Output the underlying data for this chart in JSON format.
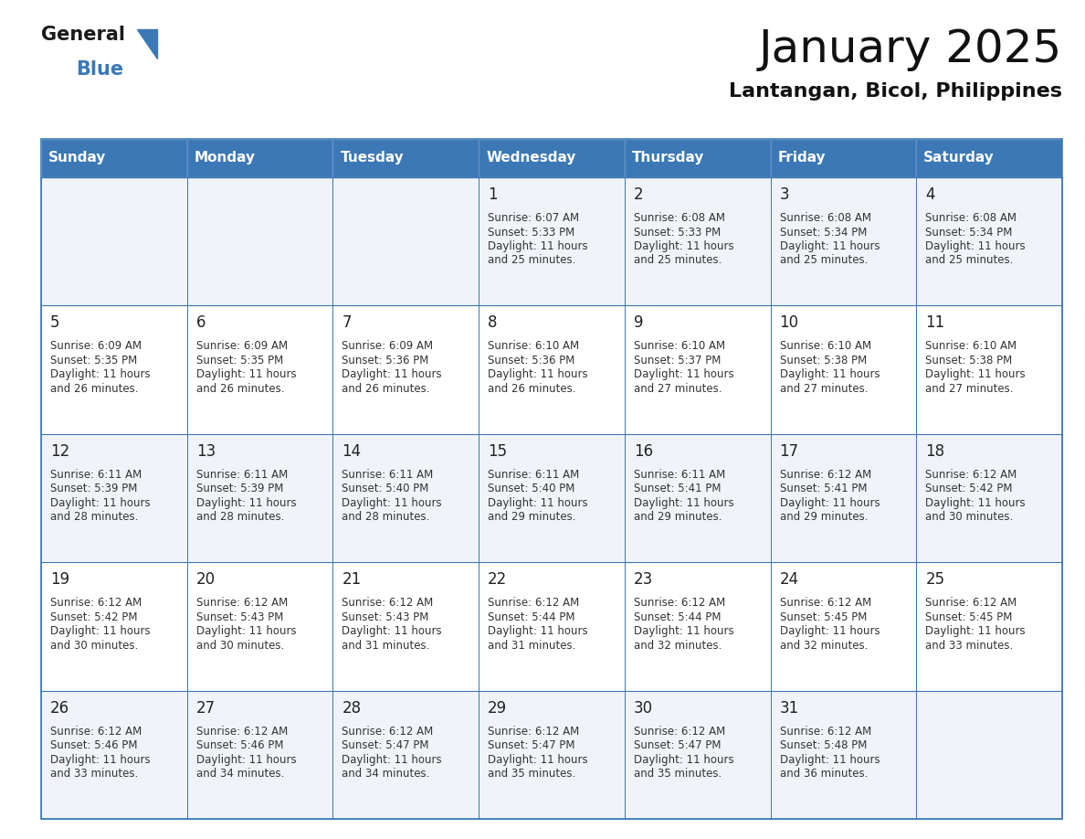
{
  "title": "January 2025",
  "subtitle": "Lantangan, Bicol, Philippines",
  "days_of_week": [
    "Sunday",
    "Monday",
    "Tuesday",
    "Wednesday",
    "Thursday",
    "Friday",
    "Saturday"
  ],
  "header_bg": "#3b78b5",
  "header_text": "#ffffff",
  "cell_bg_odd": "#f0f4f8",
  "cell_bg_even": "#ffffff",
  "cell_border": "#3b78b5",
  "day_num_color": "#222222",
  "cell_text_color": "#333333",
  "title_color": "#111111",
  "subtitle_color": "#111111",
  "calendar": [
    [
      null,
      null,
      null,
      {
        "day": 1,
        "sunrise": "6:07 AM",
        "sunset": "5:33 PM",
        "daylight_h": "11 hours",
        "daylight_m": "25 minutes"
      },
      {
        "day": 2,
        "sunrise": "6:08 AM",
        "sunset": "5:33 PM",
        "daylight_h": "11 hours",
        "daylight_m": "25 minutes"
      },
      {
        "day": 3,
        "sunrise": "6:08 AM",
        "sunset": "5:34 PM",
        "daylight_h": "11 hours",
        "daylight_m": "25 minutes"
      },
      {
        "day": 4,
        "sunrise": "6:08 AM",
        "sunset": "5:34 PM",
        "daylight_h": "11 hours",
        "daylight_m": "25 minutes"
      }
    ],
    [
      {
        "day": 5,
        "sunrise": "6:09 AM",
        "sunset": "5:35 PM",
        "daylight_h": "11 hours",
        "daylight_m": "26 minutes"
      },
      {
        "day": 6,
        "sunrise": "6:09 AM",
        "sunset": "5:35 PM",
        "daylight_h": "11 hours",
        "daylight_m": "26 minutes"
      },
      {
        "day": 7,
        "sunrise": "6:09 AM",
        "sunset": "5:36 PM",
        "daylight_h": "11 hours",
        "daylight_m": "26 minutes"
      },
      {
        "day": 8,
        "sunrise": "6:10 AM",
        "sunset": "5:36 PM",
        "daylight_h": "11 hours",
        "daylight_m": "26 minutes"
      },
      {
        "day": 9,
        "sunrise": "6:10 AM",
        "sunset": "5:37 PM",
        "daylight_h": "11 hours",
        "daylight_m": "27 minutes"
      },
      {
        "day": 10,
        "sunrise": "6:10 AM",
        "sunset": "5:38 PM",
        "daylight_h": "11 hours",
        "daylight_m": "27 minutes"
      },
      {
        "day": 11,
        "sunrise": "6:10 AM",
        "sunset": "5:38 PM",
        "daylight_h": "11 hours",
        "daylight_m": "27 minutes"
      }
    ],
    [
      {
        "day": 12,
        "sunrise": "6:11 AM",
        "sunset": "5:39 PM",
        "daylight_h": "11 hours",
        "daylight_m": "28 minutes"
      },
      {
        "day": 13,
        "sunrise": "6:11 AM",
        "sunset": "5:39 PM",
        "daylight_h": "11 hours",
        "daylight_m": "28 minutes"
      },
      {
        "day": 14,
        "sunrise": "6:11 AM",
        "sunset": "5:40 PM",
        "daylight_h": "11 hours",
        "daylight_m": "28 minutes"
      },
      {
        "day": 15,
        "sunrise": "6:11 AM",
        "sunset": "5:40 PM",
        "daylight_h": "11 hours",
        "daylight_m": "29 minutes"
      },
      {
        "day": 16,
        "sunrise": "6:11 AM",
        "sunset": "5:41 PM",
        "daylight_h": "11 hours",
        "daylight_m": "29 minutes"
      },
      {
        "day": 17,
        "sunrise": "6:12 AM",
        "sunset": "5:41 PM",
        "daylight_h": "11 hours",
        "daylight_m": "29 minutes"
      },
      {
        "day": 18,
        "sunrise": "6:12 AM",
        "sunset": "5:42 PM",
        "daylight_h": "11 hours",
        "daylight_m": "30 minutes"
      }
    ],
    [
      {
        "day": 19,
        "sunrise": "6:12 AM",
        "sunset": "5:42 PM",
        "daylight_h": "11 hours",
        "daylight_m": "30 minutes"
      },
      {
        "day": 20,
        "sunrise": "6:12 AM",
        "sunset": "5:43 PM",
        "daylight_h": "11 hours",
        "daylight_m": "30 minutes"
      },
      {
        "day": 21,
        "sunrise": "6:12 AM",
        "sunset": "5:43 PM",
        "daylight_h": "11 hours",
        "daylight_m": "31 minutes"
      },
      {
        "day": 22,
        "sunrise": "6:12 AM",
        "sunset": "5:44 PM",
        "daylight_h": "11 hours",
        "daylight_m": "31 minutes"
      },
      {
        "day": 23,
        "sunrise": "6:12 AM",
        "sunset": "5:44 PM",
        "daylight_h": "11 hours",
        "daylight_m": "32 minutes"
      },
      {
        "day": 24,
        "sunrise": "6:12 AM",
        "sunset": "5:45 PM",
        "daylight_h": "11 hours",
        "daylight_m": "32 minutes"
      },
      {
        "day": 25,
        "sunrise": "6:12 AM",
        "sunset": "5:45 PM",
        "daylight_h": "11 hours",
        "daylight_m": "33 minutes"
      }
    ],
    [
      {
        "day": 26,
        "sunrise": "6:12 AM",
        "sunset": "5:46 PM",
        "daylight_h": "11 hours",
        "daylight_m": "33 minutes"
      },
      {
        "day": 27,
        "sunrise": "6:12 AM",
        "sunset": "5:46 PM",
        "daylight_h": "11 hours",
        "daylight_m": "34 minutes"
      },
      {
        "day": 28,
        "sunrise": "6:12 AM",
        "sunset": "5:47 PM",
        "daylight_h": "11 hours",
        "daylight_m": "34 minutes"
      },
      {
        "day": 29,
        "sunrise": "6:12 AM",
        "sunset": "5:47 PM",
        "daylight_h": "11 hours",
        "daylight_m": "35 minutes"
      },
      {
        "day": 30,
        "sunrise": "6:12 AM",
        "sunset": "5:47 PM",
        "daylight_h": "11 hours",
        "daylight_m": "35 minutes"
      },
      {
        "day": 31,
        "sunrise": "6:12 AM",
        "sunset": "5:48 PM",
        "daylight_h": "11 hours",
        "daylight_m": "36 minutes"
      },
      null
    ]
  ]
}
